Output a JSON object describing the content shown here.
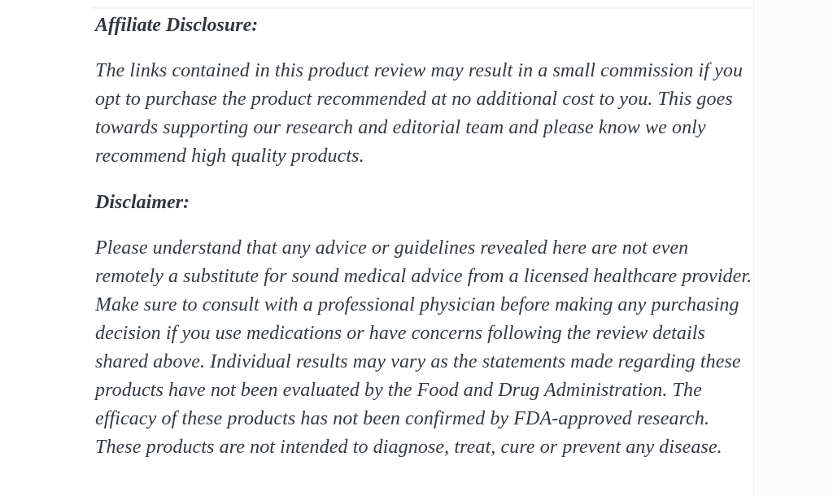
{
  "page": {
    "background_color": "#ffffff",
    "text_color": "#333a42"
  },
  "content": {
    "sections": [
      {
        "heading": "Affiliate Disclosure:",
        "body": "The links contained in this product review may result in a small commission if you opt to purchase the product recommended at no additional cost to you. This goes towards supporting our research and editorial team and please know we only recommend high quality products."
      },
      {
        "heading": "Disclaimer:",
        "body": "Please understand that any advice or guidelines revealed here are not even remotely a substitute for sound medical advice from a licensed healthcare provider. Make sure to consult with a professional physician before making any purchasing decision if you use medications or have concerns following the review details shared above. Individual results may vary as the statements made regarding these products have not been evaluated by the Food and Drug Administration. The efficacy of these products has not been confirmed by FDA-approved research. These products are not intended to diagnose, treat, cure or prevent any disease."
      }
    ]
  }
}
